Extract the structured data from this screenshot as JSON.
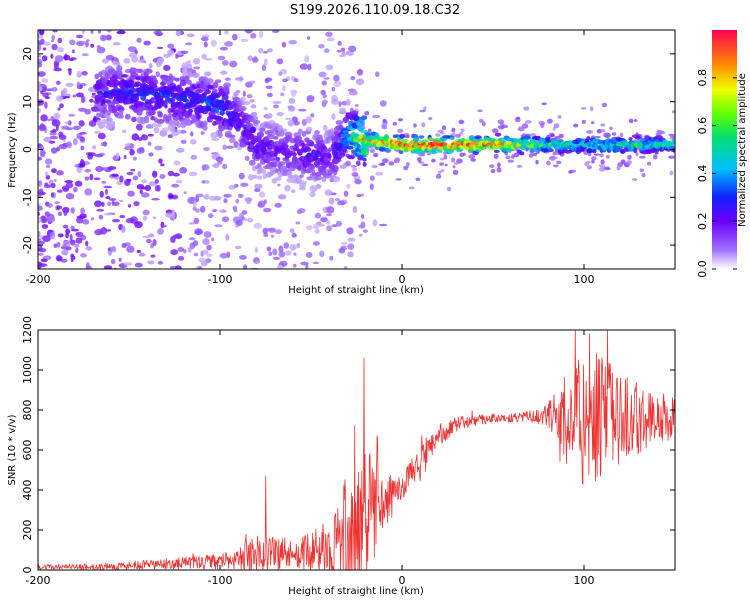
{
  "title": "S199.2026.110.09.18.C32",
  "chart_data": [
    {
      "type": "heatmap",
      "name": "spectrogram",
      "xlabel": "Height of straight line (km)",
      "ylabel": "Frequency (Hz)",
      "xlim": [
        -200,
        150
      ],
      "ylim": [
        -25,
        25
      ],
      "xticks": [
        -200,
        -100,
        0,
        100
      ],
      "yticks": [
        -20,
        -10,
        0,
        10,
        20
      ],
      "xtick_labels": [
        "-200",
        "-100",
        "0",
        "100"
      ],
      "ytick_labels": [
        "-20",
        "-10",
        "0",
        "10",
        "20"
      ],
      "colorbar": {
        "label": "Normalized spectral amplitude",
        "range": [
          0,
          1
        ],
        "ticks": [
          0.0,
          0.2,
          0.4,
          0.6,
          0.8
        ],
        "tick_labels": [
          "0.0",
          "0.2",
          "0.4",
          "0.6",
          "0.8"
        ]
      },
      "ridge": {
        "x": [
          -165,
          -150,
          -130,
          -110,
          -100,
          -90,
          -80,
          -70,
          -60,
          -50,
          -40,
          -33,
          -30,
          -20,
          0,
          20,
          50,
          80,
          100,
          120,
          150
        ],
        "y": [
          12,
          12,
          11,
          10,
          9,
          6,
          1,
          0,
          -1,
          -1,
          -2,
          2,
          3,
          2,
          1,
          1,
          1,
          1,
          1,
          1,
          1
        ],
        "amplitude": [
          0.25,
          0.3,
          0.3,
          0.3,
          0.35,
          0.25,
          0.25,
          0.2,
          0.2,
          0.25,
          0.2,
          0.3,
          0.45,
          0.8,
          1.0,
          1.0,
          0.9,
          0.55,
          0.5,
          0.55,
          0.5
        ]
      }
    },
    {
      "type": "line",
      "name": "snr",
      "xlabel": "Height of straight line (km)",
      "ylabel": "SNR (10 * v/v)",
      "xlim": [
        -200,
        150
      ],
      "ylim": [
        0,
        1200
      ],
      "xticks": [
        -200,
        -100,
        0,
        100
      ],
      "yticks": [
        0,
        200,
        400,
        600,
        800,
        1000,
        1200
      ],
      "xtick_labels": [
        "-200",
        "-100",
        "0",
        "100"
      ],
      "ytick_labels": [
        "0",
        "200",
        "400",
        "600",
        "800",
        "1000",
        "1200"
      ],
      "color": "#ee3333",
      "envelope": {
        "x": [
          -200,
          -170,
          -150,
          -130,
          -110,
          -100,
          -90,
          -80,
          -70,
          -60,
          -50,
          -40,
          -30,
          -20,
          -10,
          0,
          10,
          20,
          30,
          40,
          50,
          60,
          70,
          80,
          90,
          100,
          110,
          120,
          130,
          140,
          150
        ],
        "mean": [
          15,
          15,
          20,
          30,
          40,
          40,
          60,
          80,
          90,
          80,
          90,
          100,
          170,
          240,
          330,
          420,
          540,
          670,
          730,
          750,
          760,
          760,
          770,
          770,
          760,
          760,
          760,
          760,
          760,
          760,
          760
        ],
        "spread": [
          15,
          15,
          25,
          30,
          40,
          40,
          60,
          110,
          120,
          70,
          110,
          170,
          350,
          400,
          150,
          80,
          80,
          60,
          40,
          30,
          25,
          25,
          30,
          60,
          250,
          400,
          350,
          250,
          200,
          150,
          130
        ]
      },
      "peaks": [
        {
          "x": -21,
          "y": 1060
        },
        {
          "x": -75,
          "y": 470
        },
        {
          "x": 103,
          "y": 1180
        },
        {
          "x": 113,
          "y": 1200
        }
      ]
    }
  ]
}
